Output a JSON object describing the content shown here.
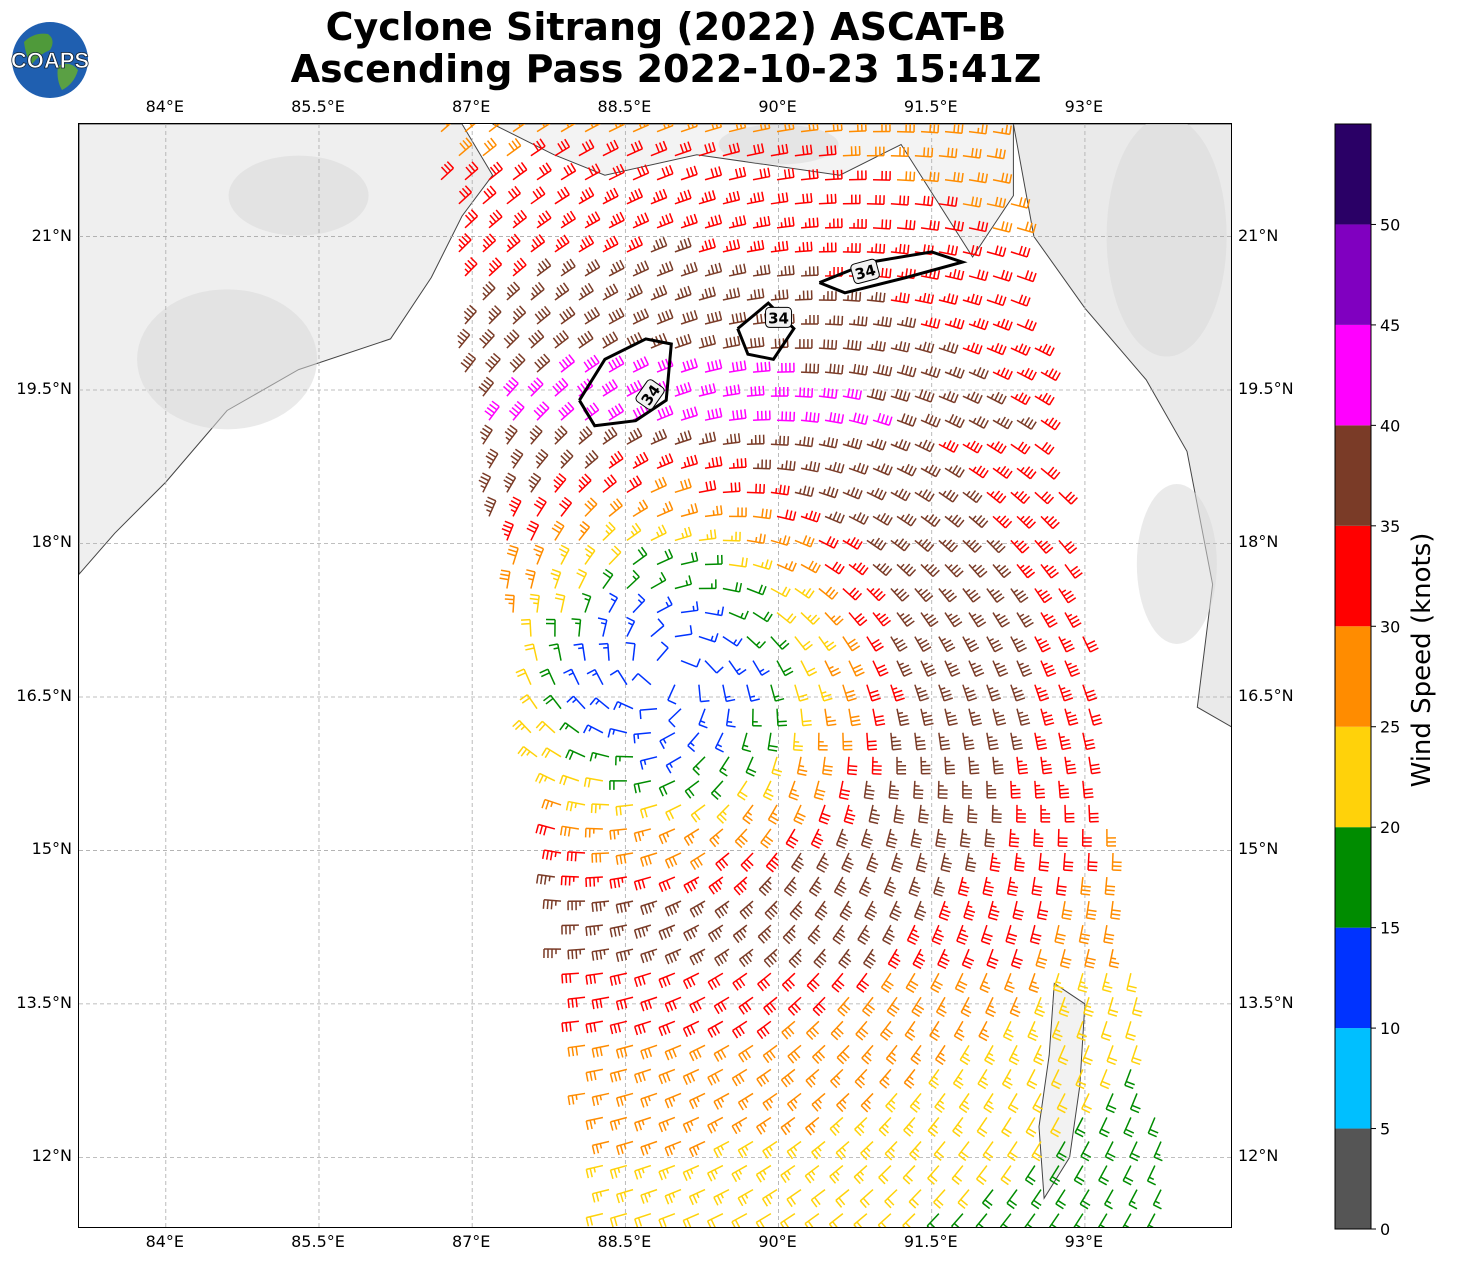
{
  "title": {
    "line1": "Cyclone Sitrang (2022) ASCAT-B",
    "line2": "Ascending Pass 2022-10-23 15:41Z"
  },
  "logo": {
    "text": "COAPS",
    "icon": "earth-globe-icon"
  },
  "map": {
    "lon_range": [
      83.15,
      94.45
    ],
    "lat_range": [
      11.3,
      22.1
    ],
    "lon_ticks": [
      "84°E",
      "85.5°E",
      "87°E",
      "88.5°E",
      "90°E",
      "91.5°E",
      "93°E"
    ],
    "lon_tick_values": [
      84,
      85.5,
      87,
      88.5,
      90,
      91.5,
      93
    ],
    "lat_ticks": [
      "12°N",
      "13.5°N",
      "15°N",
      "16.5°N",
      "18°N",
      "19.5°N",
      "21°N"
    ],
    "lat_tick_values": [
      12,
      13.5,
      15,
      16.5,
      18,
      19.5,
      21
    ],
    "contour_label": "34",
    "contour_label_count": 3
  },
  "colorbar": {
    "label": "Wind Speed (knots)",
    "tick_labels": [
      "0",
      "5",
      "10",
      "15",
      "20",
      "25",
      "30",
      "35",
      "40",
      "45",
      "50"
    ],
    "bins": [
      {
        "min": 0,
        "max": 5,
        "color": "#555555"
      },
      {
        "min": 5,
        "max": 10,
        "color": "#00bfff"
      },
      {
        "min": 10,
        "max": 15,
        "color": "#0033ff"
      },
      {
        "min": 15,
        "max": 20,
        "color": "#008c00"
      },
      {
        "min": 20,
        "max": 25,
        "color": "#ffd20a"
      },
      {
        "min": 25,
        "max": 30,
        "color": "#ff8c00"
      },
      {
        "min": 30,
        "max": 35,
        "color": "#ff0000"
      },
      {
        "min": 35,
        "max": 40,
        "color": "#7a3b27"
      },
      {
        "min": 40,
        "max": 45,
        "color": "#ff00ff"
      },
      {
        "min": 45,
        "max": 50,
        "color": "#8000c0"
      },
      {
        "min": 50,
        "max": 55,
        "color": "#2a0066"
      }
    ]
  },
  "wind_field": {
    "center": {
      "lon": 88.9,
      "lat": 16.7
    },
    "swath_corners": [
      {
        "lon": 86.5,
        "lat": 21.0
      },
      {
        "lon": 88.0,
        "lat": 22.1
      },
      {
        "lon": 92.3,
        "lat": 22.1
      },
      {
        "lon": 93.9,
        "lat": 11.3
      },
      {
        "lon": 88.3,
        "lat": 11.3
      },
      {
        "lon": 88.4,
        "lat": 18.3
      }
    ]
  }
}
